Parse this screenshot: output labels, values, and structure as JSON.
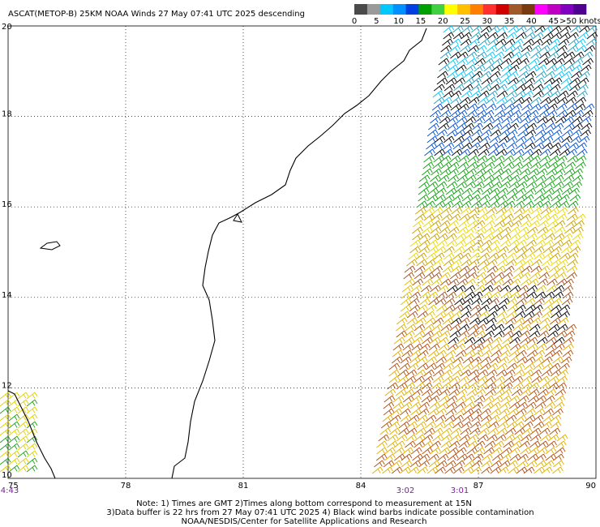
{
  "title": "ASCAT(METOP-B) 25KM NOAA Winds 27 May 07:41 UTC 2025 descending",
  "color_scale": {
    "labels": [
      "0",
      "5",
      "10",
      "15",
      "20",
      "25",
      "30",
      "35",
      "40",
      "45",
      ">50 knots"
    ],
    "colors": [
      "#4a4a4a",
      "#9a9a9a",
      "#00c8ff",
      "#0090ff",
      "#0040e0",
      "#00a000",
      "#40d040",
      "#ffff00",
      "#ffc000",
      "#ff8000",
      "#ff3030",
      "#d00000",
      "#a05a2a",
      "#7a3a10",
      "#ff00ff",
      "#c000c0",
      "#8000c0",
      "#500090"
    ]
  },
  "map": {
    "latitudes": [
      20,
      18,
      16,
      14,
      12,
      10
    ],
    "longitudes": [
      75,
      78,
      81,
      84,
      87,
      90
    ],
    "time_labels": [
      "4:43",
      "3:02",
      "3:01"
    ]
  },
  "notes": [
    "Note: 1) Times are GMT 2)Times along bottom correspond to measurement at 15N",
    "3)Data buffer is 22 hrs from 27 May 07:41 UTC 2025 4) Black wind barbs indicate possible contamination",
    "NOAA/NESDIS/Center for Satellite Applications and Research"
  ]
}
